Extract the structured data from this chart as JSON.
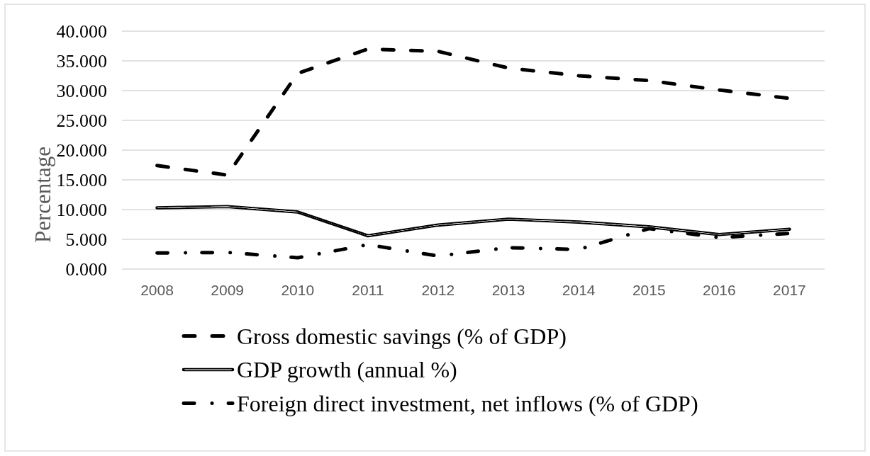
{
  "chart_data": {
    "type": "line",
    "ylabel": "Percentage",
    "categories": [
      "2008",
      "2009",
      "2010",
      "2011",
      "2012",
      "2013",
      "2014",
      "2015",
      "2016",
      "2017"
    ],
    "series": [
      {
        "name": "Gross domestic savings (% of GDP)",
        "color": "#000000",
        "line_style": "dashed",
        "values": [
          17.4,
          15.8,
          32.9,
          37.0,
          36.6,
          33.8,
          32.5,
          31.7,
          30.1,
          28.7
        ]
      },
      {
        "name": "GDP growth (annual %)",
        "color": "#000000",
        "line_style": "solid",
        "values": [
          10.3,
          10.5,
          9.6,
          5.6,
          7.4,
          8.4,
          7.9,
          7.1,
          5.8,
          6.7
        ]
      },
      {
        "name": "Foreign direct investment, net inflows (% of GDP)",
        "color": "#000000",
        "line_style": "dashdot",
        "values": [
          2.7,
          2.8,
          1.9,
          4.1,
          2.2,
          3.6,
          3.3,
          6.8,
          5.3,
          6.0
        ]
      }
    ],
    "ylim": [
      0,
      40
    ],
    "yticks": [
      {
        "value": 0,
        "label": "0.000"
      },
      {
        "value": 5,
        "label": "5.000"
      },
      {
        "value": 10,
        "label": "10.000"
      },
      {
        "value": 15,
        "label": "15.000"
      },
      {
        "value": 20,
        "label": "20.000"
      },
      {
        "value": 25,
        "label": "25.000"
      },
      {
        "value": 30,
        "label": "30.000"
      },
      {
        "value": 35,
        "label": "35.000"
      },
      {
        "value": 40,
        "label": "40.000"
      }
    ],
    "grid": "y",
    "legend": "bottom"
  }
}
